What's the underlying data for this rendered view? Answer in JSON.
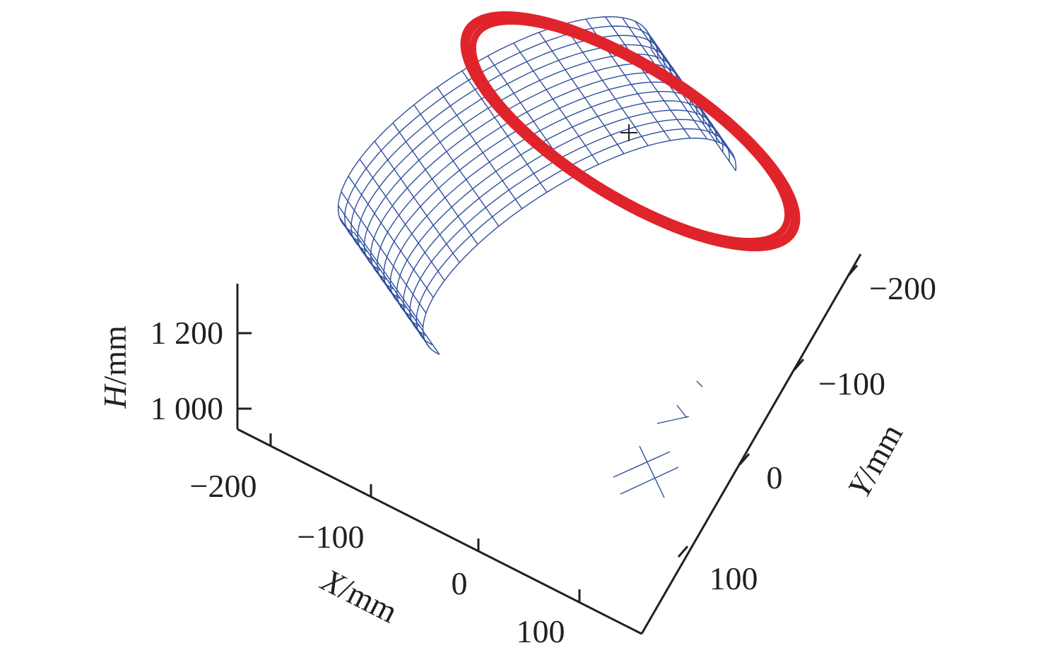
{
  "chart_data": {
    "type": "scatter",
    "projection": "3d",
    "axes": {
      "x": {
        "label_var": "X",
        "label_unit": "/mm",
        "ticks": [
          -200,
          -100,
          0,
          100
        ],
        "tick_labels": [
          "−200",
          "−100",
          "0",
          "100"
        ]
      },
      "y": {
        "label_var": "Y",
        "label_unit": "/mm",
        "ticks": [
          -200,
          -100,
          0,
          100
        ],
        "tick_labels": [
          "−200",
          "−100",
          "0",
          "100"
        ]
      },
      "h": {
        "label_var": "H",
        "label_unit": "/mm",
        "ticks": [
          1000,
          1200
        ],
        "tick_labels": [
          "1 000",
          "1 200"
        ]
      }
    },
    "series": [
      {
        "kind": "wireframe-surface",
        "color": "#2e4f9e"
      },
      {
        "kind": "ring",
        "color": "#e0242b"
      }
    ],
    "grid": false
  }
}
